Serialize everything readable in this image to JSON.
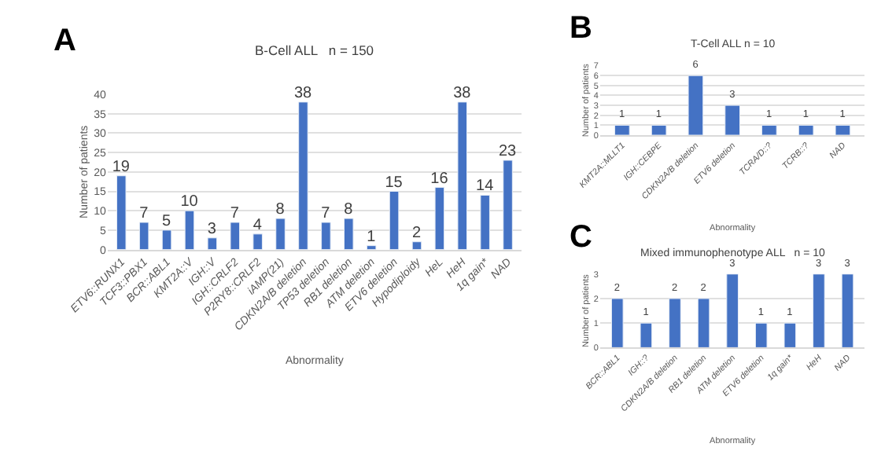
{
  "chart_data": [
    {
      "type": "bar",
      "title": "B-Cell ALL   n = 150",
      "xlabel": "Abnormality",
      "ylabel": "Number of patients",
      "annotations": [
        "A"
      ],
      "categories": [
        "ETV6::RUNX1",
        "TCF3::PBX1",
        "BCR::ABL1",
        "KMT2A::V",
        "IGH::V",
        "IGH::CRLF2",
        "P2RY8::CRLF2",
        "iAMP(21)",
        "CDKN2A/B deletion",
        "TP53 deletion",
        "RB1 deletion",
        "ATM deletion",
        "ETV6 deletion",
        "Hypodiploidy",
        "HeL",
        "HeH",
        "1q gain*",
        "NAD"
      ],
      "values": [
        19,
        7,
        5,
        10,
        3,
        7,
        4,
        8,
        38,
        7,
        8,
        1,
        15,
        2,
        16,
        38,
        14,
        23
      ],
      "color": "#4472c4",
      "ylim": [
        0,
        40
      ],
      "yticks": [
        0,
        5,
        10,
        15,
        20,
        25,
        30,
        35,
        40
      ],
      "grid": "y",
      "data_labels": true
    },
    {
      "type": "bar",
      "title": "T-Cell ALL n = 10",
      "xlabel": "Abnormality",
      "ylabel": "Number of patients",
      "annotations": [
        "B"
      ],
      "categories": [
        "KMT2A::MLLT1",
        "IGH::CEBPE",
        "CDKN2A/B deletion",
        "ETV6 deletion",
        "TCRA/D::?",
        "TCRB::?",
        "NAD"
      ],
      "values": [
        1,
        1,
        6,
        3,
        1,
        1,
        1
      ],
      "color": "#4472c4",
      "ylim": [
        0,
        7
      ],
      "yticks": [
        0,
        1,
        2,
        3,
        4,
        5,
        6,
        7
      ],
      "grid": "y",
      "data_labels": true
    },
    {
      "type": "bar",
      "title": "Mixed immunophenotype ALL   n = 10",
      "xlabel": "Abnormality",
      "ylabel": "Number of patients",
      "annotations": [
        "C"
      ],
      "categories": [
        "BCR::ABL1",
        "IGH::?",
        "CDKN2A/B deletion",
        "RB1 deletion",
        "ATM deletion",
        "ETV6 deletion",
        "1q gain*",
        "HeH",
        "NAD"
      ],
      "values": [
        2,
        1,
        2,
        2,
        3,
        1,
        1,
        3,
        3
      ],
      "color": "#4472c4",
      "ylim": [
        0,
        3
      ],
      "yticks": [
        0,
        1,
        2,
        3
      ],
      "grid": "y",
      "data_labels": true
    }
  ]
}
